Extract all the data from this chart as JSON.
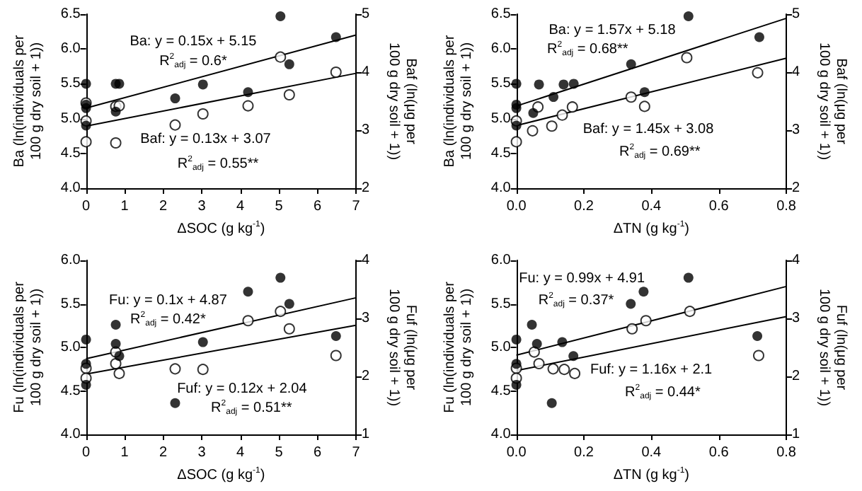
{
  "chart_data": [
    {
      "type": "scatter",
      "xlabel": "ΔSOC (g kg$^{-1}$)",
      "ylabel": "Ba (ln(individuals per 100 g dry soil + 1))",
      "y2label": "Baf (ln(μg per 100 g dry soil + 1))",
      "xlim": [
        0,
        7
      ],
      "xticks": [
        0,
        1,
        2,
        3,
        4,
        5,
        6,
        7
      ],
      "ylim": [
        4,
        6.5
      ],
      "yticks": [
        {
          "value": 4,
          "label": "4.0"
        },
        4.5,
        {
          "value": 5,
          "label": "5.0"
        },
        5.5,
        {
          "value": 6,
          "label": "6.0"
        },
        6.5
      ],
      "y2lim": [
        2,
        5
      ],
      "y2ticks": [
        2,
        3,
        4,
        5
      ],
      "grid": false,
      "annotations": [
        "Ba: y = 0.15x + 5.15",
        "R$^{2}$$_{adj}$ = 0.6*",
        "Baf: y = 0.13x + 3.07",
        "R$^{2}$$_{adj}$ = 0.55**"
      ],
      "series": [
        {
          "marker": "circle",
          "color": "#000000",
          "x": [
            0,
            0,
            0,
            0,
            0.77,
            0.86,
            0.77,
            2.31,
            3.03,
            4.2,
            5.04,
            5.27,
            6.48
          ],
          "values": [
            5.5,
            5.2,
            5.15,
            4.9,
            5.5,
            5.5,
            5.1,
            5.29,
            5.49,
            5.38,
            6.47,
            5.78,
            6.17
          ]
        },
        {
          "marker": "circle",
          "color": "#000000",
          "axis": "y2",
          "x": [
            0,
            0,
            0,
            0.77,
            0.77,
            0.86,
            2.31,
            3.03,
            4.2,
            5.04,
            5.27,
            6.48
          ],
          "values": [
            3.47,
            3.16,
            2.8,
            3.41,
            2.78,
            3.42,
            3.09,
            3.28,
            3.42,
            4.26,
            3.61,
            4.0
          ]
        },
        {
          "type": "line",
          "marker": "none",
          "color": "#000000",
          "x": [
            0,
            7
          ],
          "values": [
            5.15,
            6.2
          ]
        },
        {
          "type": "line",
          "marker": "none",
          "color": "#000000",
          "axis": "y2",
          "x": [
            0,
            7
          ],
          "values": [
            3.07,
            3.98
          ]
        }
      ]
    },
    {
      "type": "scatter",
      "xlabel": "ΔTN (g kg$^{-1}$)",
      "ylabel": "Ba (ln(individuals per 100 g dry soil + 1))",
      "y2label": "Baf (ln(μg per 100 g dry soil + 1))",
      "xlim": [
        0,
        0.8
      ],
      "xticks": [
        {
          "value": 0,
          "label": "0.0"
        },
        0.2,
        0.4,
        0.6,
        0.8
      ],
      "ylim": [
        4,
        6.5
      ],
      "yticks": [
        {
          "value": 4,
          "label": "4.0"
        },
        4.5,
        {
          "value": 5,
          "label": "5.0"
        },
        5.5,
        {
          "value": 6,
          "label": "6.0"
        },
        6.5
      ],
      "y2lim": [
        2,
        5
      ],
      "y2ticks": [
        2,
        3,
        4,
        5
      ],
      "grid": false,
      "annotations": [
        "Ba: y = 1.57x + 5.18",
        "R$^{2}$$_{adj}$ = 0.68**",
        "Baf: y = 1.45x + 3.08",
        "R$^{2}$$_{adj}$ = 0.69**"
      ],
      "series": [
        {
          "marker": "circle",
          "color": "#000000",
          "x": [
            0,
            0,
            0,
            0,
            0.05,
            0.067,
            0.11,
            0.14,
            0.17,
            0.34,
            0.38,
            0.51,
            0.72
          ],
          "values": [
            5.5,
            5.2,
            5.15,
            4.9,
            5.08,
            5.49,
            5.31,
            5.49,
            5.5,
            5.78,
            5.38,
            6.47,
            6.17
          ]
        },
        {
          "marker": "circle",
          "color": "#000000",
          "axis": "y2",
          "x": [
            0,
            0,
            0.048,
            0.064,
            0.105,
            0.136,
            0.166,
            0.34,
            0.38,
            0.505,
            0.715
          ],
          "values": [
            3.16,
            2.8,
            2.99,
            3.4,
            3.07,
            3.26,
            3.4,
            3.57,
            3.41,
            4.25,
            3.99
          ]
        },
        {
          "type": "line",
          "marker": "none",
          "color": "#000000",
          "x": [
            0,
            0.8
          ],
          "values": [
            5.18,
            6.44
          ]
        },
        {
          "type": "line",
          "marker": "none",
          "color": "#000000",
          "axis": "y2",
          "x": [
            0,
            0.8
          ],
          "values": [
            3.08,
            4.24
          ]
        }
      ]
    },
    {
      "type": "scatter",
      "xlabel": "ΔSOC (g kg$^{-1}$)",
      "ylabel": "Fu (ln(individuals per 100 g dry soil + 1))",
      "y2label": "Fuf (ln(μg per 100 g dry soil + 1))",
      "xlim": [
        0,
        7
      ],
      "xticks": [
        0,
        1,
        2,
        3,
        4,
        5,
        6,
        7
      ],
      "ylim": [
        4,
        6
      ],
      "yticks": [
        {
          "value": 4,
          "label": "4.0"
        },
        4.5,
        {
          "value": 5,
          "label": "5.0"
        },
        5.5,
        {
          "value": 6,
          "label": "6.0"
        }
      ],
      "y2lim": [
        1,
        4
      ],
      "y2ticks": [
        1,
        2,
        3,
        4
      ],
      "grid": false,
      "annotations": [
        "Fu: y = 0.1x + 4.87",
        "R$^{2}$$_{adj}$ = 0.42*",
        "Fuf: y = 0.12x + 2.04",
        "R$^{2}$$_{adj}$ = 0.51**"
      ],
      "series": [
        {
          "marker": "circle",
          "color": "#000000",
          "x": [
            0,
            0,
            0,
            0.77,
            0.77,
            0.86,
            2.31,
            3.03,
            4.2,
            5.04,
            5.27,
            6.48
          ],
          "values": [
            5.09,
            4.81,
            4.57,
            5.26,
            5.04,
            4.9,
            4.36,
            5.06,
            5.64,
            5.8,
            5.5,
            5.13
          ]
        },
        {
          "marker": "circle",
          "color": "#000000",
          "axis": "y2",
          "x": [
            0,
            0,
            0.77,
            0.77,
            0.86,
            2.31,
            3.03,
            4.2,
            5.04,
            5.27,
            6.48
          ],
          "values": [
            2.14,
            1.97,
            2.42,
            2.22,
            2.05,
            2.13,
            2.12,
            2.96,
            3.12,
            2.82,
            2.36
          ]
        },
        {
          "type": "line",
          "marker": "none",
          "color": "#000000",
          "x": [
            0,
            7
          ],
          "values": [
            4.87,
            5.57
          ]
        },
        {
          "type": "line",
          "marker": "none",
          "color": "#000000",
          "axis": "y2",
          "x": [
            0,
            7
          ],
          "values": [
            2.04,
            2.88
          ]
        }
      ]
    },
    {
      "type": "scatter",
      "xlabel": "ΔTN (g kg$^{-1}$)",
      "ylabel": "Fu (ln(individuals per 100 g dry soil + 1))",
      "y2label": "Fuf (ln(μg per 100 g dry soil + 1))",
      "xlim": [
        0,
        0.8
      ],
      "xticks": [
        {
          "value": 0,
          "label": "0.0"
        },
        0.2,
        0.4,
        0.6,
        0.8
      ],
      "ylim": [
        4,
        6
      ],
      "yticks": [
        {
          "value": 4,
          "label": "4.0"
        },
        4.5,
        {
          "value": 5,
          "label": "5.0"
        },
        5.5,
        {
          "value": 6,
          "label": "6.0"
        }
      ],
      "y2lim": [
        1,
        4
      ],
      "y2ticks": [
        1,
        2,
        3,
        4
      ],
      "grid": false,
      "annotations": [
        "Fu: y = 0.99x + 4.91",
        "R$^{2}$$_{adj}$ = 0.37*",
        "Fuf: y = 1.16x + 2.1",
        "R$^{2}$$_{adj}$ = 0.44*"
      ],
      "series": [
        {
          "marker": "circle",
          "color": "#000000",
          "x": [
            0,
            0,
            0,
            0.046,
            0.061,
            0.105,
            0.136,
            0.169,
            0.339,
            0.377,
            0.51,
            0.714
          ],
          "values": [
            5.09,
            4.81,
            4.57,
            5.26,
            5.04,
            4.36,
            5.06,
            4.9,
            5.5,
            5.64,
            5.8,
            5.13
          ]
        },
        {
          "marker": "circle",
          "color": "#000000",
          "axis": "y2",
          "x": [
            0,
            0,
            0.053,
            0.067,
            0.109,
            0.142,
            0.173,
            0.343,
            0.384,
            0.514,
            0.718
          ],
          "values": [
            2.14,
            1.97,
            2.42,
            2.22,
            2.13,
            2.12,
            2.05,
            2.82,
            2.96,
            3.12,
            2.36
          ]
        },
        {
          "type": "line",
          "marker": "none",
          "color": "#000000",
          "x": [
            0,
            0.8
          ],
          "values": [
            4.91,
            5.7
          ]
        },
        {
          "type": "line",
          "marker": "none",
          "color": "#000000",
          "axis": "y2",
          "x": [
            0,
            0.8
          ],
          "values": [
            2.1,
            3.03
          ]
        }
      ]
    }
  ]
}
